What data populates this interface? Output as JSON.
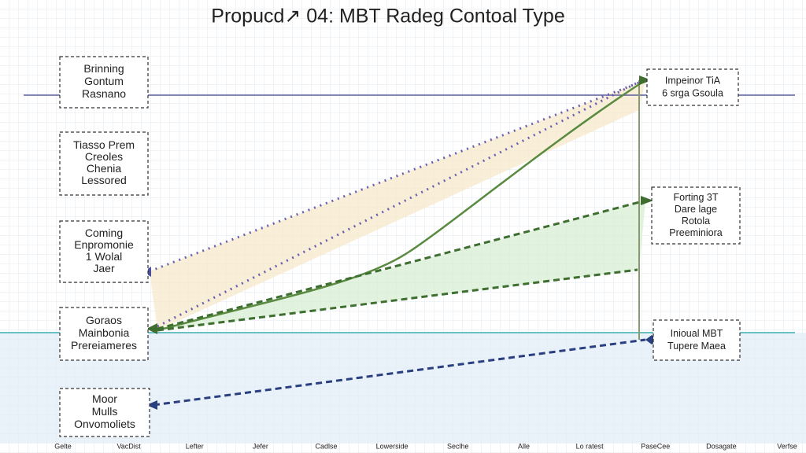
{
  "title": "Propucd↗ 04: MBT Radeg Contoal Type",
  "left_boxes": [
    {
      "lines": [
        "Brinning",
        "Gontum",
        "Rasnano"
      ]
    },
    {
      "lines": [
        "Tiasso Prem",
        "Creoles",
        "Chenia",
        "Lessored"
      ]
    },
    {
      "lines": [
        "Coming",
        "Enpromonie",
        "1 Wolal",
        "Jaer"
      ]
    },
    {
      "lines": [
        "Goraos",
        "Mainbonia",
        "Prereiameres"
      ]
    },
    {
      "lines": [
        "Moor",
        "Mulls",
        "Onvomoliets"
      ]
    }
  ],
  "right_boxes": [
    {
      "lines": [
        "Impeinor TiA",
        "6 srga Gsoula"
      ]
    },
    {
      "lines": [
        "Forting 3T",
        "Dare lage",
        "Rotola",
        "Preeminiora"
      ]
    },
    {
      "lines": [
        "Inioual MBT",
        "Tupere Maea"
      ]
    }
  ],
  "x_labels": [
    "Gelte",
    "VacDist",
    "Lefter",
    "Jefer",
    "Cadlse",
    "Lowerside",
    "Seclhe",
    "Alle",
    "Lo ratest",
    "PaseCee",
    "Dosagate",
    "Verfse"
  ]
}
